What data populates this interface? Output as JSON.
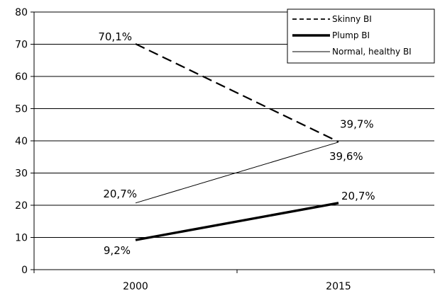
{
  "chart_data": {
    "type": "line",
    "title": "",
    "xlabel": "",
    "ylabel": "",
    "categories": [
      "2000",
      "2015"
    ],
    "ylim": [
      0,
      80
    ],
    "yticks": [
      0,
      10,
      20,
      30,
      40,
      50,
      60,
      70,
      80
    ],
    "grid": "horizontal",
    "legend": "top-right",
    "series": [
      {
        "name": "Skinny BI",
        "values": [
          70.1,
          39.7
        ],
        "labels": [
          "70,1%",
          "39,7%"
        ],
        "style": "dashed",
        "color": "#000000"
      },
      {
        "name": "Plump BI",
        "values": [
          9.2,
          20.7
        ],
        "labels": [
          "9,2%",
          "20,7%"
        ],
        "style": "thick",
        "color": "#000000"
      },
      {
        "name": "Normal, healthy BI",
        "values": [
          20.7,
          39.6
        ],
        "labels": [
          "20,7%",
          "39,6%"
        ],
        "style": "thin",
        "color": "#000000"
      }
    ]
  }
}
